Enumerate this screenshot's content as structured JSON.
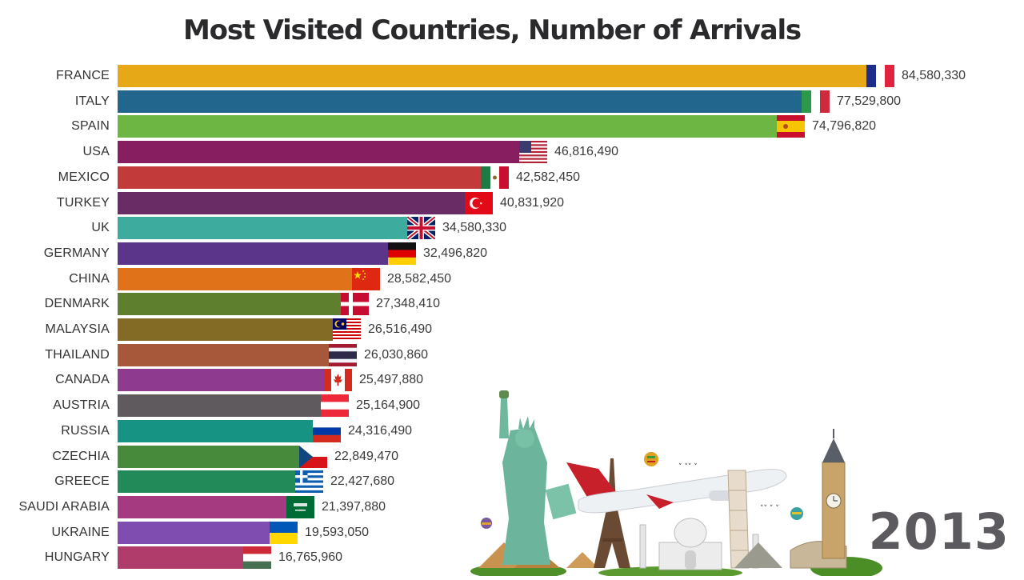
{
  "title": "Most Visited Countries, Number of Arrivals",
  "year": "2013",
  "illustration": {
    "description": "travel landmarks collage with airplane",
    "landmarks": [
      "statue-of-liberty",
      "pyramids",
      "eiffel-tower",
      "taj-mahal",
      "leaning-tower-of-pisa",
      "chichen-itza",
      "colosseum",
      "big-ben",
      "hot-air-balloons",
      "airplane"
    ]
  },
  "rows": [
    {
      "label": "FRANCE",
      "value_text": "84,580,330",
      "color": "#E6A817",
      "flag": "france"
    },
    {
      "label": "ITALY",
      "value_text": "77,529,800",
      "color": "#22668D",
      "flag": "italy"
    },
    {
      "label": "SPAIN",
      "value_text": "74,796,820",
      "color": "#6DB643",
      "flag": "spain"
    },
    {
      "label": "USA",
      "value_text": "46,816,490",
      "color": "#861E5F",
      "flag": "usa"
    },
    {
      "label": "MEXICO",
      "value_text": "42,582,450",
      "color": "#C23B3A",
      "flag": "mexico"
    },
    {
      "label": "TURKEY",
      "value_text": "40,831,920",
      "color": "#6A2C64",
      "flag": "turkey"
    },
    {
      "label": "UK",
      "value_text": "34,580,330",
      "color": "#3EAB9F",
      "flag": "uk"
    },
    {
      "label": "GERMANY",
      "value_text": "32,496,820",
      "color": "#5A3589",
      "flag": "germany"
    },
    {
      "label": "CHINA",
      "value_text": "28,582,450",
      "color": "#E07219",
      "flag": "china"
    },
    {
      "label": "DENMARK",
      "value_text": "27,348,410",
      "color": "#5E7F2D",
      "flag": "denmark"
    },
    {
      "label": "MALAYSIA",
      "value_text": "26,516,490",
      "color": "#836B25",
      "flag": "malaysia"
    },
    {
      "label": "THAILAND",
      "value_text": "26,030,860",
      "color": "#A8583A",
      "flag": "thailand"
    },
    {
      "label": "CANADA",
      "value_text": "25,497,880",
      "color": "#8E3A8E",
      "flag": "canada"
    },
    {
      "label": "AUSTRIA",
      "value_text": "25,164,900",
      "color": "#5E5A5E",
      "flag": "austria"
    },
    {
      "label": "RUSSIA",
      "value_text": "24,316,490",
      "color": "#169382",
      "flag": "russia"
    },
    {
      "label": "CZECHIA",
      "value_text": "22,849,470",
      "color": "#478A3B",
      "flag": "czechia"
    },
    {
      "label": "GREECE",
      "value_text": "22,427,680",
      "color": "#218A58",
      "flag": "greece"
    },
    {
      "label": "SAUDI ARABIA",
      "value_text": "21,397,880",
      "color": "#A53A80",
      "flag": "saudi-arabia"
    },
    {
      "label": "UKRAINE",
      "value_text": "19,593,050",
      "color": "#7F4DAF",
      "flag": "ukraine"
    },
    {
      "label": "HUNGARY",
      "value_text": "16,765,960",
      "color": "#B03C6B",
      "flag": "hungary"
    }
  ],
  "chart_data": {
    "type": "bar",
    "orientation": "horizontal",
    "title": "Most Visited Countries, Number of Arrivals",
    "annotation": "2013",
    "xlabel": "",
    "ylabel": "",
    "grid": false,
    "legend": null,
    "categories": [
      "FRANCE",
      "ITALY",
      "SPAIN",
      "USA",
      "MEXICO",
      "TURKEY",
      "UK",
      "GERMANY",
      "CHINA",
      "DENMARK",
      "MALAYSIA",
      "THAILAND",
      "CANADA",
      "AUSTRIA",
      "RUSSIA",
      "CZECHIA",
      "GREECE",
      "SAUDI ARABIA",
      "UKRAINE",
      "HUNGARY"
    ],
    "values": [
      84580330,
      77529800,
      74796820,
      46816490,
      42582450,
      40831920,
      34580330,
      32496820,
      28582450,
      27348410,
      26516490,
      26030860,
      25497880,
      25164900,
      24316490,
      22849470,
      22427680,
      21397880,
      19593050,
      16765960
    ],
    "xlim": [
      0,
      84580330
    ]
  }
}
